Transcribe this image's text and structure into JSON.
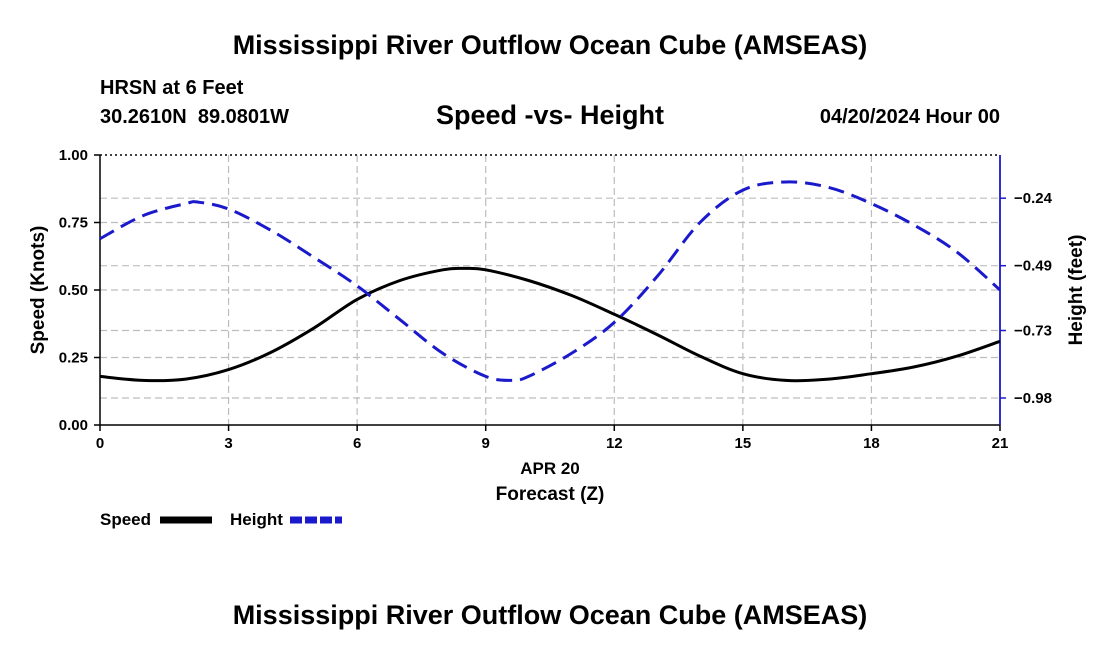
{
  "header": {
    "title": "Mississippi River Outflow Ocean Cube (AMSEAS)",
    "station": "HRSN at 6 Feet",
    "coords": "30.2610N  89.0801W",
    "subtitle": "Speed -vs- Height",
    "datetime": "04/20/2024 Hour 00"
  },
  "footer": {
    "title": "Mississippi River Outflow Ocean Cube (AMSEAS)"
  },
  "legend": {
    "speed_label": "Speed",
    "height_label": "Height"
  },
  "chart_data": {
    "type": "line",
    "title": "Speed -vs- Height",
    "xlabel": "Forecast (Z)",
    "xdate_label": "APR 20",
    "ylabel_left": "Speed (Knots)",
    "ylabel_right": "Height (feet)",
    "xlim": [
      0,
      21
    ],
    "xticks": [
      0,
      3,
      6,
      9,
      12,
      15,
      18,
      21
    ],
    "xtick_labels": [
      "0",
      "3",
      "6",
      "9",
      "12",
      "15",
      "18",
      "21"
    ],
    "ylim_left": [
      0,
      1
    ],
    "yticks_left": [
      0,
      0.25,
      0.5,
      0.75,
      1
    ],
    "ytick_labels_left": [
      "0.00",
      "0.25",
      "0.50",
      "0.75",
      "1.00"
    ],
    "ylim_right": [
      -1.08,
      -0.08
    ],
    "yticks_right": [
      -0.98,
      -0.73,
      -0.49,
      -0.24
    ],
    "ytick_labels_right": [
      "−0.98",
      "−0.73",
      "−0.49",
      "−0.24"
    ],
    "grid": true,
    "colors": {
      "speed": "#000000",
      "height": "#1a1acc"
    },
    "series": [
      {
        "name": "Speed",
        "axis": "left",
        "style": "solid",
        "x": [
          0,
          1,
          2,
          3,
          4,
          5,
          6,
          7,
          8,
          8.5,
          9,
          10,
          11,
          12,
          13,
          14,
          15,
          16,
          17,
          18,
          19,
          20,
          21
        ],
        "values": [
          0.18,
          0.165,
          0.17,
          0.205,
          0.27,
          0.36,
          0.465,
          0.535,
          0.575,
          0.58,
          0.575,
          0.535,
          0.48,
          0.41,
          0.335,
          0.255,
          0.19,
          0.165,
          0.17,
          0.19,
          0.215,
          0.255,
          0.31
        ]
      },
      {
        "name": "Height",
        "axis": "right",
        "style": "dashed",
        "x": [
          0,
          1,
          2,
          2.3,
          3,
          4,
          5,
          6,
          7,
          8,
          9,
          9.6,
          10,
          11,
          12,
          13,
          14,
          15,
          16,
          17,
          18,
          19,
          20,
          21
        ],
        "values": [
          -0.39,
          -0.305,
          -0.26,
          -0.255,
          -0.28,
          -0.36,
          -0.46,
          -0.565,
          -0.69,
          -0.815,
          -0.9,
          -0.915,
          -0.9,
          -0.815,
          -0.7,
          -0.53,
          -0.33,
          -0.21,
          -0.18,
          -0.2,
          -0.26,
          -0.34,
          -0.44,
          -0.58
        ]
      }
    ]
  }
}
